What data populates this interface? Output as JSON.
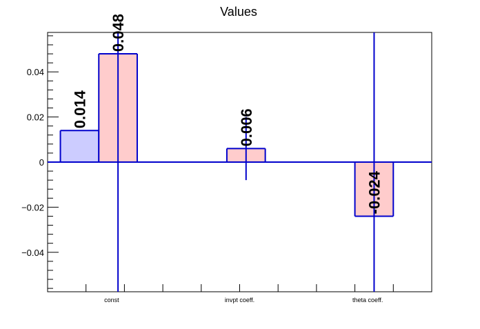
{
  "chart_data": {
    "type": "bar",
    "title": "Values",
    "xlabel": "",
    "ylabel": "",
    "categories": [
      "const",
      "invpt coeff.",
      "theta coeff."
    ],
    "series": [
      {
        "values": [
          0.014,
          null,
          null
        ],
        "value_labels": [
          "0.014",
          "",
          ""
        ],
        "errors": [
          null,
          null,
          null
        ],
        "fill": "#ccccff",
        "edge": "#0000cc"
      },
      {
        "values": [
          0.048,
          0.006,
          -0.024
        ],
        "value_labels": [
          "0.048",
          "0.006",
          "-0.024"
        ],
        "errors": [
          0.65,
          0.014,
          0.65
        ],
        "fill": "#ffcccc",
        "edge": "#0000cc"
      }
    ],
    "ylim": [
      -0.0575,
      0.0575
    ],
    "yticks": [
      -0.04,
      -0.02,
      0,
      0.02,
      0.04
    ],
    "ytick_labels": [
      "−0.04",
      "−0.02",
      "0",
      "0.02",
      "0.04"
    ],
    "zero_line_color": "#0000cc",
    "grid": false,
    "legend": "none"
  }
}
